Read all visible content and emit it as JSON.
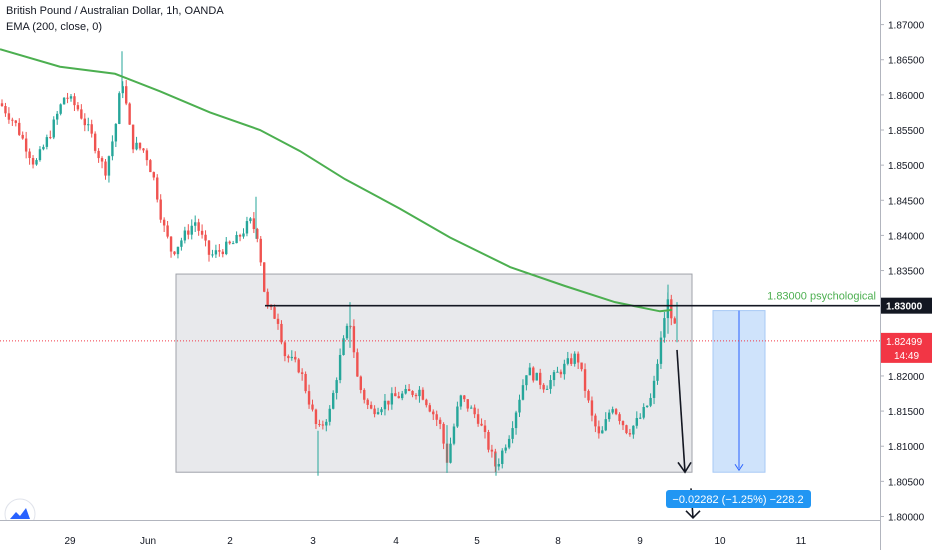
{
  "header": {
    "symbol_title": "British Pound / Australian Dollar, 1h, OANDA",
    "indicator": "EMA (200, close, 0)"
  },
  "colors": {
    "up": "#26a69a",
    "down": "#ef5350",
    "ema": "#4caf50",
    "price_line": "#f23645",
    "range_box_fill": "#e6e7ea",
    "range_box_stroke": "#9598a1",
    "projection_fill": "#cfe3fb",
    "projection_stroke": "#2962ff",
    "label_blue": "#2196f3",
    "axis_text": "#131722"
  },
  "chart_data": {
    "type": "candlestick",
    "y_axis": {
      "range": [
        1.7995,
        1.8735
      ],
      "ticks": [
        "1.87000",
        "1.86500",
        "1.86000",
        "1.85500",
        "1.85000",
        "1.84500",
        "1.84000",
        "1.83500",
        "1.83000",
        "1.82500",
        "1.82000",
        "1.81500",
        "1.81000",
        "1.80500",
        "1.80000"
      ]
    },
    "x_axis": {
      "ticks": [
        "29",
        "Jun",
        "2",
        "3",
        "4",
        "5",
        "8",
        "9",
        "10",
        "11"
      ]
    },
    "ema_200": [
      [
        0,
        1.8665
      ],
      [
        60,
        1.864
      ],
      [
        115,
        1.863
      ],
      [
        160,
        1.8605
      ],
      [
        210,
        1.8575
      ],
      [
        260,
        1.855
      ],
      [
        300,
        1.852
      ],
      [
        345,
        1.848
      ],
      [
        400,
        1.8438
      ],
      [
        450,
        1.8397
      ],
      [
        510,
        1.8355
      ],
      [
        565,
        1.8328
      ],
      [
        615,
        1.8305
      ],
      [
        660,
        1.8292
      ],
      [
        672,
        1.8294
      ]
    ],
    "price_path": [
      [
        0,
        1.8588
      ],
      [
        15,
        1.856
      ],
      [
        35,
        1.85
      ],
      [
        50,
        1.8545
      ],
      [
        65,
        1.86
      ],
      [
        78,
        1.858
      ],
      [
        92,
        1.854
      ],
      [
        105,
        1.849
      ],
      [
        115,
        1.855
      ],
      [
        122,
        1.8625
      ],
      [
        132,
        1.853
      ],
      [
        145,
        1.852
      ],
      [
        155,
        1.8475
      ],
      [
        162,
        1.842
      ],
      [
        172,
        1.8375
      ],
      [
        182,
        1.8395
      ],
      [
        195,
        1.842
      ],
      [
        210,
        1.837
      ],
      [
        222,
        1.838
      ],
      [
        235,
        1.839
      ],
      [
        250,
        1.842
      ],
      [
        258,
        1.84
      ],
      [
        266,
        1.83
      ],
      [
        278,
        1.828
      ],
      [
        285,
        1.823
      ],
      [
        300,
        1.821
      ],
      [
        318,
        1.812
      ],
      [
        330,
        1.815
      ],
      [
        342,
        1.824
      ],
      [
        350,
        1.828
      ],
      [
        358,
        1.819
      ],
      [
        370,
        1.815
      ],
      [
        395,
        1.817
      ],
      [
        420,
        1.818
      ],
      [
        440,
        1.813
      ],
      [
        447,
        1.808
      ],
      [
        460,
        1.817
      ],
      [
        478,
        1.814
      ],
      [
        496,
        1.807
      ],
      [
        510,
        1.812
      ],
      [
        527,
        1.821
      ],
      [
        545,
        1.8185
      ],
      [
        562,
        1.821
      ],
      [
        577,
        1.823
      ],
      [
        592,
        1.814
      ],
      [
        600,
        1.811
      ],
      [
        612,
        1.816
      ],
      [
        628,
        1.812
      ],
      [
        640,
        1.814
      ],
      [
        652,
        1.817
      ],
      [
        662,
        1.826
      ],
      [
        667,
        1.831
      ],
      [
        673,
        1.828
      ],
      [
        677,
        1.825
      ]
    ],
    "key_prices": {
      "resistance": 1.83,
      "range_high": 1.8345,
      "range_low": 1.8063,
      "current": 1.82499,
      "wick_low": 1.8058
    },
    "annotations": {
      "level_label": "1.83000 psychological",
      "level_price": "1.83000",
      "current_price": "1.82499",
      "countdown": "14:49",
      "measure_label": "−0.02282 (−1.25%) −228.2"
    }
  }
}
